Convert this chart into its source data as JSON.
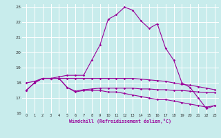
{
  "xlabel": "Windchill (Refroidissement éolien,°C)",
  "bg_color": "#c8ecec",
  "grid_color": "#ffffff",
  "line_color": "#990099",
  "xlim": [
    -0.5,
    23.5
  ],
  "ylim": [
    16,
    23.2
  ],
  "yticks": [
    16,
    17,
    18,
    19,
    20,
    21,
    22,
    23
  ],
  "xticks": [
    0,
    1,
    2,
    3,
    4,
    5,
    6,
    7,
    8,
    9,
    10,
    11,
    12,
    13,
    14,
    15,
    16,
    17,
    18,
    19,
    20,
    21,
    22,
    23
  ],
  "curve1_x": [
    0,
    1,
    2,
    3,
    4,
    5,
    6,
    7,
    8,
    9,
    10,
    11,
    12,
    13,
    14,
    15,
    16,
    17,
    18,
    19,
    20,
    21,
    22,
    23
  ],
  "curve1_y": [
    17.5,
    18.0,
    18.3,
    18.3,
    18.3,
    17.7,
    17.4,
    17.5,
    17.5,
    17.5,
    17.4,
    17.4,
    17.3,
    17.2,
    17.1,
    17.0,
    16.9,
    16.9,
    16.8,
    16.7,
    16.6,
    16.5,
    16.4,
    16.5
  ],
  "curve2_x": [
    0,
    1,
    2,
    3,
    4,
    5,
    6,
    7,
    8,
    9,
    10,
    11,
    12,
    13,
    14,
    15,
    16,
    17,
    18,
    19,
    20,
    21,
    22,
    23
  ],
  "curve2_y": [
    17.5,
    18.0,
    18.3,
    18.3,
    18.3,
    17.7,
    17.45,
    17.55,
    17.6,
    17.65,
    17.65,
    17.65,
    17.65,
    17.65,
    17.6,
    17.6,
    17.55,
    17.55,
    17.5,
    17.5,
    17.45,
    17.4,
    17.35,
    17.35
  ],
  "curve3_x": [
    0,
    1,
    2,
    3,
    4,
    5,
    6,
    7,
    8,
    9,
    10,
    11,
    12,
    13,
    14,
    15,
    16,
    17,
    18,
    19,
    20,
    21,
    22,
    23
  ],
  "curve3_y": [
    17.5,
    18.0,
    18.3,
    18.3,
    18.4,
    18.5,
    18.5,
    18.5,
    19.5,
    20.5,
    22.2,
    22.5,
    23.0,
    22.8,
    22.1,
    21.6,
    21.9,
    20.3,
    19.5,
    18.0,
    17.7,
    17.0,
    16.3,
    16.5
  ],
  "curve4_x": [
    0,
    1,
    2,
    3,
    4,
    5,
    6,
    7,
    8,
    9,
    10,
    11,
    12,
    13,
    14,
    15,
    16,
    17,
    18,
    19,
    20,
    21,
    22,
    23
  ],
  "curve4_y": [
    18.0,
    18.1,
    18.3,
    18.3,
    18.3,
    18.3,
    18.3,
    18.3,
    18.3,
    18.3,
    18.3,
    18.3,
    18.3,
    18.3,
    18.25,
    18.2,
    18.15,
    18.1,
    18.0,
    17.9,
    17.85,
    17.75,
    17.65,
    17.55
  ]
}
